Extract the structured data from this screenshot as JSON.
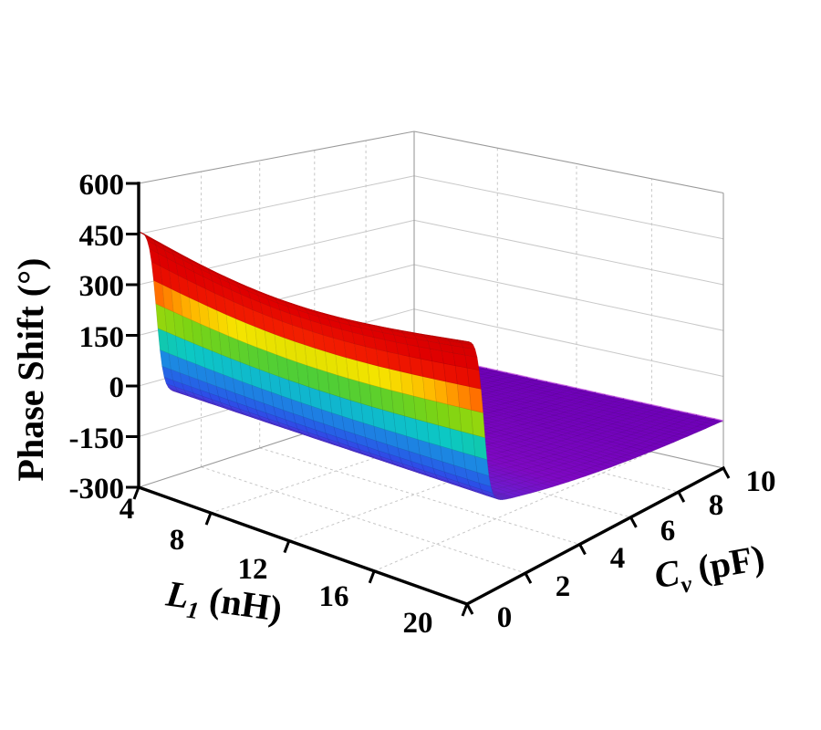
{
  "figure": {
    "background": "#ffffff",
    "z_axis": {
      "title": "Phase Shift (°)",
      "tick_values": [
        600,
        450,
        300,
        150,
        0,
        -150,
        -300
      ],
      "range": [
        -300,
        600
      ]
    },
    "x_axis": {
      "title_symbol": "L",
      "title_sub": "1",
      "title_unit": " (nH)",
      "tick_values": [
        4,
        8,
        12,
        16,
        20
      ],
      "range": [
        4,
        20
      ]
    },
    "y_axis": {
      "title_symbol": "C",
      "title_sub": "v",
      "title_unit": " (pF)",
      "tick_values": [
        0,
        2,
        4,
        6,
        8,
        10
      ],
      "range": [
        0,
        10
      ]
    },
    "colors": {
      "axis": "#000000",
      "grid": "#c6c6c6",
      "wall_edge": "#9a9a9a",
      "far_edge_highlight": "#d878e8",
      "background": "#ffffff"
    }
  },
  "chart_data": {
    "type": "surface",
    "title": "",
    "xlabel": "L1 (nH)",
    "ylabel": "Cv (pF)",
    "zlabel": "Phase Shift (°)",
    "x_range": [
      4,
      20
    ],
    "y_range": [
      0,
      10
    ],
    "z_range": [
      -300,
      600
    ],
    "grid_on": true,
    "surface_model": {
      "description": "Phase shift plateaus near +450 deg for Cv near 0, sags to about +395 deg at mid L1, drops in a steep cliff (~500 deg) at Cv about 0.55 pF, then declines gently from about -40 deg to about -145 deg as Cv goes to 10 pF.",
      "plateau_max_deg": 460,
      "plateau_sag_deg": 62,
      "cliff_cv_pf": 0.55,
      "cliff_width_pf": 0.11,
      "post_cliff_start_deg": -35,
      "post_cliff_drop_deg": 131,
      "post_cliff_tau_pf": 5.2,
      "color_zmin": -150,
      "color_zmax": 456
    },
    "plateau_phase_at_cv0": {
      "L1": [
        4,
        8,
        12,
        16,
        20
      ],
      "phase_deg": [
        455,
        416,
        395,
        416,
        456
      ]
    },
    "post_cliff_phase": {
      "Cv": [
        1,
        2,
        4,
        6,
        8,
        10
      ],
      "phase_deg": [
        -46,
        -67,
        -99,
        -120,
        -135,
        -145
      ]
    },
    "colormap": [
      [
        0.0,
        "#6E00B8"
      ],
      [
        0.095,
        "#7F08C4"
      ],
      [
        0.15,
        "#6A1ED0"
      ],
      [
        0.24,
        "#2A50E8"
      ],
      [
        0.38,
        "#1896E0"
      ],
      [
        0.44,
        "#0CC8C4"
      ],
      [
        0.49,
        "#22C85A"
      ],
      [
        0.55,
        "#7CD414"
      ],
      [
        0.6,
        "#C8DC00"
      ],
      [
        0.64,
        "#F5E400"
      ],
      [
        0.665,
        "#FFB400"
      ],
      [
        0.69,
        "#FF6000"
      ],
      [
        0.72,
        "#F21C00"
      ],
      [
        0.84,
        "#E00000"
      ],
      [
        1.0,
        "#D00000"
      ]
    ],
    "legend": "none"
  }
}
